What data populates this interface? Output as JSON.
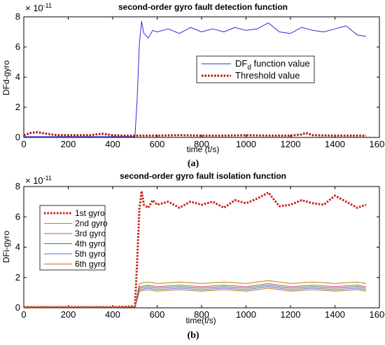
{
  "chart_data": [
    {
      "type": "line",
      "title": "second-order gyro fault detection function",
      "xlabel": "time (t/s)",
      "ylabel": "DFd-gyro",
      "caption": "(a)",
      "exponent_label": "× 10",
      "exponent_power": "-11",
      "xlim": [
        0,
        1600
      ],
      "ylim": [
        0,
        8
      ],
      "xticks": [
        "0",
        "200",
        "400",
        "600",
        "800",
        "1000",
        "1200",
        "1400",
        "1600"
      ],
      "yticks": [
        "0",
        "2",
        "4",
        "6",
        "8"
      ],
      "grid": false,
      "legend_position": "center-right",
      "series": [
        {
          "name": "DF",
          "name_sub": "d",
          "name_rest": " function value",
          "color": "#2b2bd9",
          "style": "solid",
          "x": [
            0,
            100,
            200,
            300,
            400,
            500,
            510,
            520,
            530,
            540,
            560,
            580,
            600,
            650,
            700,
            750,
            800,
            850,
            900,
            950,
            1000,
            1050,
            1100,
            1150,
            1200,
            1250,
            1300,
            1350,
            1400,
            1450,
            1500,
            1540
          ],
          "y": [
            0.05,
            0.05,
            0.05,
            0.05,
            0.05,
            0.05,
            2.5,
            6.2,
            7.7,
            6.9,
            6.6,
            7.1,
            7.0,
            7.2,
            6.9,
            7.3,
            7.0,
            7.2,
            7.0,
            7.3,
            7.1,
            7.2,
            7.6,
            7.0,
            6.9,
            7.3,
            7.1,
            7.0,
            7.2,
            7.4,
            6.8,
            6.7
          ]
        },
        {
          "name": "Threshold value",
          "color": "#b01010",
          "style": "dotted",
          "x": [
            0,
            30,
            60,
            100,
            150,
            200,
            250,
            300,
            350,
            400,
            450,
            500,
            550,
            600,
            700,
            800,
            900,
            1000,
            1100,
            1200,
            1250,
            1270,
            1300,
            1400,
            1540
          ],
          "y": [
            0.15,
            0.3,
            0.35,
            0.25,
            0.15,
            0.15,
            0.15,
            0.15,
            0.25,
            0.15,
            0.12,
            0.12,
            0.12,
            0.12,
            0.15,
            0.12,
            0.12,
            0.15,
            0.12,
            0.12,
            0.2,
            0.3,
            0.15,
            0.12,
            0.12
          ]
        }
      ]
    },
    {
      "type": "line",
      "title": "second-order gyro fault isolation function",
      "xlabel": "time(t/s)",
      "ylabel": "DFi-gyro",
      "caption": "(b)",
      "exponent_label": "× 10",
      "exponent_power": "-11",
      "xlim": [
        0,
        1600
      ],
      "ylim": [
        0,
        8
      ],
      "xticks": [
        "0",
        "200",
        "400",
        "600",
        "800",
        "1000",
        "1200",
        "1400",
        "1600"
      ],
      "yticks": [
        "0",
        "2",
        "4",
        "6",
        "8"
      ],
      "grid": false,
      "legend_position": "upper-left",
      "series": [
        {
          "name": "1st gyro",
          "color": "#cc1a1a",
          "style": "dotted",
          "x": [
            0,
            100,
            200,
            300,
            400,
            500,
            510,
            520,
            530,
            540,
            560,
            580,
            600,
            650,
            700,
            750,
            800,
            850,
            900,
            950,
            1000,
            1050,
            1100,
            1150,
            1200,
            1250,
            1300,
            1350,
            1400,
            1450,
            1500,
            1540
          ],
          "y": [
            0.05,
            0.05,
            0.05,
            0.05,
            0.05,
            0.1,
            3.0,
            6.5,
            7.7,
            6.8,
            6.6,
            7.1,
            6.8,
            7.0,
            6.6,
            7.0,
            6.8,
            7.0,
            6.6,
            7.1,
            6.9,
            7.2,
            7.6,
            6.7,
            6.8,
            7.1,
            6.9,
            6.8,
            7.4,
            7.0,
            6.6,
            6.8
          ]
        },
        {
          "name": "2nd gyro",
          "color": "#b8860b",
          "style": "solid",
          "x": [
            0,
            100,
            200,
            300,
            400,
            500,
            510,
            520,
            560,
            600,
            700,
            800,
            900,
            1000,
            1100,
            1200,
            1300,
            1400,
            1500,
            1540
          ],
          "y": [
            0.05,
            0.05,
            0.05,
            0.05,
            0.05,
            0.05,
            0.8,
            1.6,
            1.7,
            1.6,
            1.7,
            1.6,
            1.7,
            1.6,
            1.8,
            1.6,
            1.7,
            1.6,
            1.7,
            1.6
          ]
        },
        {
          "name": "3rd gyro",
          "color": "#c94f7c",
          "style": "solid",
          "x": [
            0,
            100,
            200,
            300,
            400,
            500,
            510,
            520,
            560,
            600,
            700,
            800,
            900,
            1000,
            1100,
            1200,
            1300,
            1400,
            1500,
            1540
          ],
          "y": [
            0.05,
            0.05,
            0.05,
            0.05,
            0.05,
            0.05,
            0.7,
            1.4,
            1.5,
            1.4,
            1.5,
            1.4,
            1.5,
            1.4,
            1.6,
            1.4,
            1.5,
            1.4,
            1.5,
            1.4
          ]
        },
        {
          "name": "4th gyro",
          "color": "#2e8b57",
          "style": "solid",
          "x": [
            0,
            100,
            200,
            300,
            400,
            500,
            510,
            520,
            560,
            600,
            700,
            800,
            900,
            1000,
            1100,
            1200,
            1300,
            1400,
            1500,
            1540
          ],
          "y": [
            0.05,
            0.05,
            0.05,
            0.05,
            0.05,
            0.05,
            0.6,
            1.3,
            1.4,
            1.3,
            1.4,
            1.3,
            1.4,
            1.3,
            1.5,
            1.3,
            1.4,
            1.3,
            1.4,
            1.3
          ]
        },
        {
          "name": "5th gyro",
          "color": "#4a6fd1",
          "style": "solid",
          "x": [
            0,
            100,
            200,
            300,
            400,
            500,
            510,
            520,
            560,
            600,
            700,
            800,
            900,
            1000,
            1100,
            1200,
            1300,
            1400,
            1500,
            1540
          ],
          "y": [
            0.05,
            0.05,
            0.05,
            0.05,
            0.05,
            0.05,
            0.6,
            1.2,
            1.3,
            1.2,
            1.3,
            1.2,
            1.3,
            1.2,
            1.4,
            1.2,
            1.3,
            1.2,
            1.3,
            1.2
          ]
        },
        {
          "name": "6th gyro",
          "color": "#d2691e",
          "style": "solid",
          "x": [
            0,
            100,
            200,
            300,
            400,
            500,
            510,
            520,
            560,
            600,
            700,
            800,
            900,
            1000,
            1100,
            1200,
            1300,
            1400,
            1500,
            1540
          ],
          "y": [
            0.05,
            0.05,
            0.05,
            0.05,
            0.05,
            0.05,
            0.5,
            1.1,
            1.2,
            1.1,
            1.2,
            1.1,
            1.2,
            1.1,
            1.3,
            1.1,
            1.2,
            1.1,
            1.2,
            1.1
          ]
        }
      ]
    }
  ]
}
